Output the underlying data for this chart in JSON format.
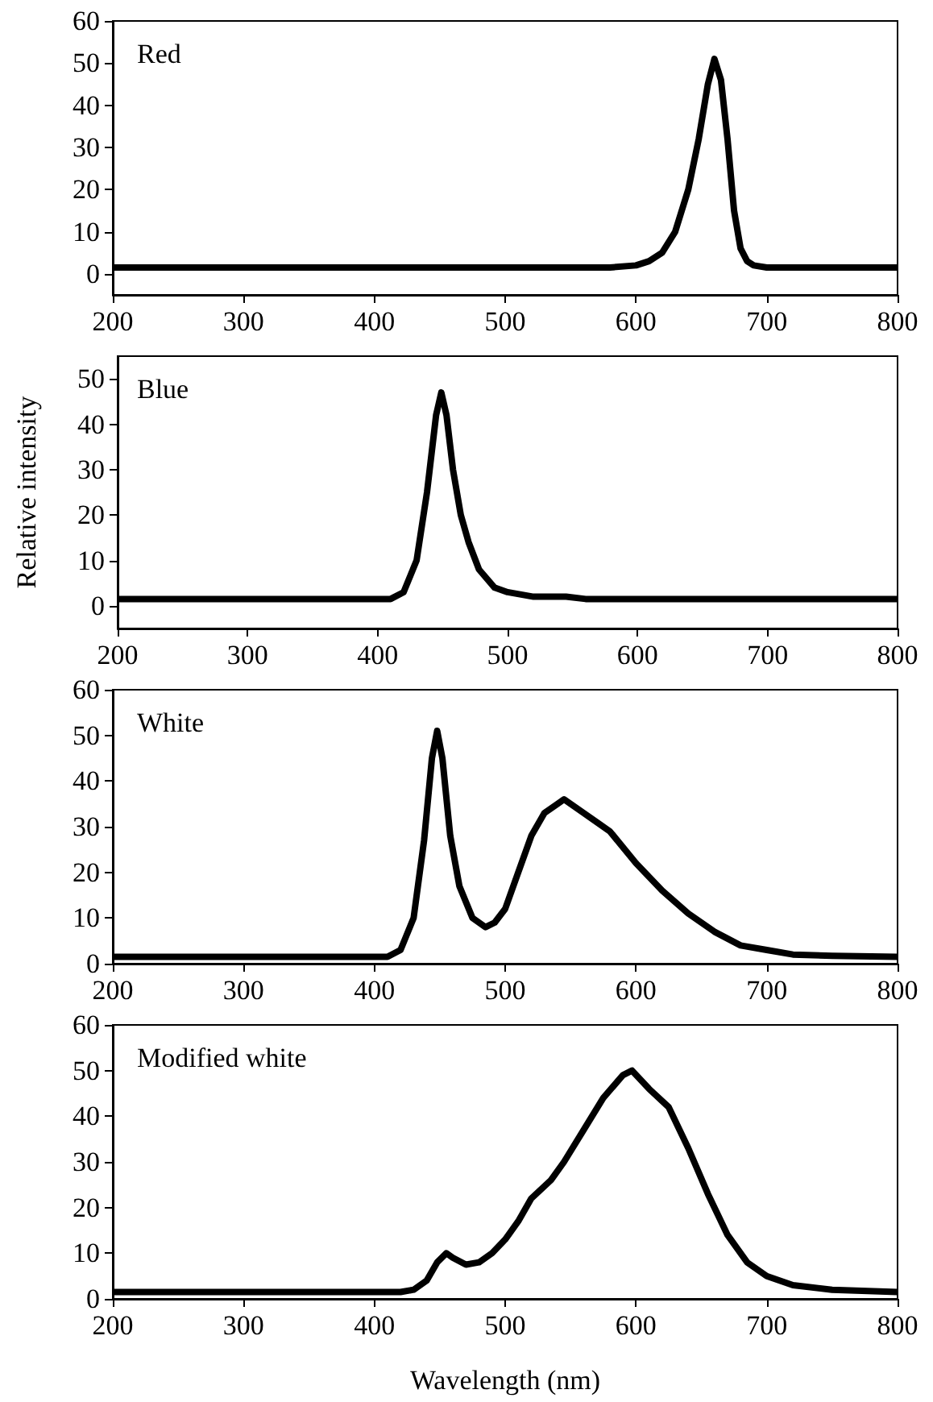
{
  "chart_data": [
    {
      "type": "line",
      "title": "Red",
      "x": [
        200,
        300,
        400,
        500,
        580,
        600,
        610,
        620,
        630,
        640,
        648,
        655,
        660,
        665,
        670,
        675,
        680,
        685,
        690,
        700,
        800
      ],
      "series": [
        {
          "color": "#000000",
          "values": [
            1.5,
            1.5,
            1.5,
            1.5,
            1.5,
            2,
            3,
            5,
            10,
            20,
            32,
            45,
            51,
            46,
            32,
            15,
            6,
            3,
            2,
            1.5,
            1.5
          ]
        }
      ],
      "xlim": [
        200,
        800
      ],
      "xticks": [
        200,
        300,
        400,
        500,
        600,
        700,
        800
      ],
      "ylim": [
        -5,
        60
      ],
      "yticks": [
        0,
        10,
        20,
        30,
        40,
        50,
        60
      ],
      "marker": "none",
      "line_style": "solid",
      "grid": false
    },
    {
      "type": "line",
      "title": "Blue",
      "ylabel": "Relative intensity",
      "x": [
        200,
        300,
        410,
        420,
        430,
        438,
        445,
        449,
        453,
        458,
        464,
        470,
        478,
        490,
        500,
        520,
        545,
        560,
        700,
        800
      ],
      "series": [
        {
          "color": "#000000",
          "values": [
            1.5,
            1.5,
            1.5,
            3,
            10,
            25,
            42,
            47,
            42,
            30,
            20,
            14,
            8,
            4,
            3,
            2,
            2,
            1.5,
            1.5,
            1.5
          ]
        }
      ],
      "xlim": [
        200,
        800
      ],
      "xticks": [
        200,
        300,
        400,
        500,
        600,
        700,
        800
      ],
      "ylim": [
        -5,
        55
      ],
      "yticks": [
        0,
        10,
        20,
        30,
        40,
        50
      ],
      "marker": "none",
      "line_style": "solid",
      "grid": false
    },
    {
      "type": "line",
      "title": "White",
      "x": [
        200,
        300,
        410,
        420,
        430,
        438,
        444,
        448,
        452,
        458,
        465,
        475,
        485,
        492,
        500,
        510,
        520,
        530,
        540,
        545,
        560,
        580,
        600,
        620,
        640,
        660,
        680,
        700,
        720,
        750,
        800
      ],
      "series": [
        {
          "color": "#000000",
          "values": [
            1.5,
            1.5,
            1.5,
            3,
            10,
            27,
            45,
            51,
            45,
            28,
            17,
            10,
            8,
            9,
            12,
            20,
            28,
            33,
            35,
            36,
            33,
            29,
            22,
            16,
            11,
            7,
            4,
            3,
            2,
            1.7,
            1.5
          ]
        }
      ],
      "xlim": [
        200,
        800
      ],
      "xticks": [
        200,
        300,
        400,
        500,
        600,
        700,
        800
      ],
      "ylim": [
        0,
        60
      ],
      "yticks": [
        0,
        10,
        20,
        30,
        40,
        50,
        60
      ],
      "marker": "none",
      "line_style": "solid",
      "grid": false
    },
    {
      "type": "line",
      "title": "Modified white",
      "xlabel": "Wavelength (nm)",
      "x": [
        200,
        300,
        420,
        430,
        440,
        448,
        455,
        460,
        470,
        480,
        490,
        500,
        510,
        520,
        535,
        545,
        560,
        575,
        590,
        597,
        610,
        625,
        640,
        655,
        670,
        685,
        700,
        720,
        750,
        800
      ],
      "series": [
        {
          "color": "#000000",
          "values": [
            1.5,
            1.5,
            1.5,
            2,
            4,
            8,
            10,
            9,
            7.5,
            8,
            10,
            13,
            17,
            22,
            26,
            30,
            37,
            44,
            49,
            50,
            46,
            42,
            33,
            23,
            14,
            8,
            5,
            3,
            2,
            1.5
          ]
        }
      ],
      "xlim": [
        200,
        800
      ],
      "xticks": [
        200,
        300,
        400,
        500,
        600,
        700,
        800
      ],
      "ylim": [
        0,
        60
      ],
      "yticks": [
        0,
        10,
        20,
        30,
        40,
        50,
        60
      ],
      "marker": "none",
      "line_style": "solid",
      "grid": false
    }
  ]
}
